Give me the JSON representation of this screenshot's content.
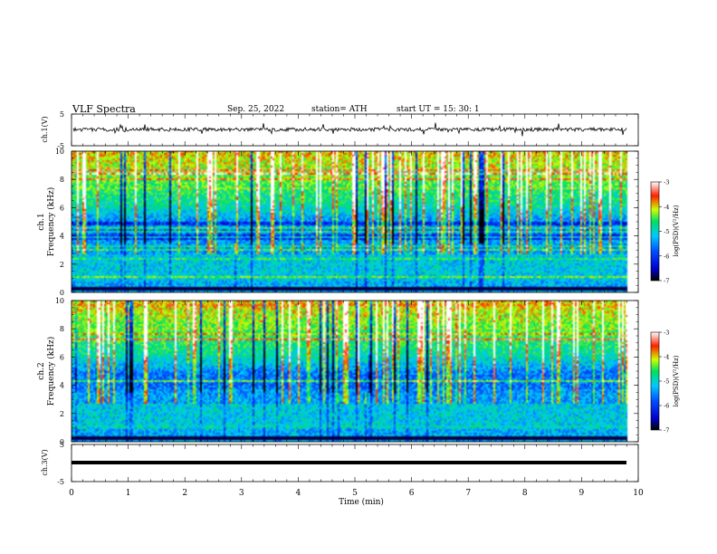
{
  "header": {
    "title": "VLF  Spectra",
    "date": "Sep. 25, 2022",
    "station": "station= ATH",
    "start": "start  UT  =    15: 30: 1"
  },
  "chart_data": [
    {
      "type": "line",
      "panel": "ch1-waveform",
      "ylabel": "ch.1(V)",
      "ylim": [
        -5,
        5
      ],
      "yticks": [
        "5",
        "-5"
      ],
      "xlim": [
        0,
        10
      ],
      "series_color": "#000000"
    },
    {
      "type": "heatmap",
      "panel": "ch1-spectrogram",
      "ylabel": "ch.1\nFrequency (kHz)",
      "ylim": [
        0,
        10
      ],
      "yticks": [
        "0",
        "2",
        "4",
        "6",
        "8",
        "10"
      ],
      "xlim": [
        0,
        10
      ],
      "colorbar": {
        "label": "log(PSD)(V²/Hz)",
        "range": [
          -7,
          -3
        ],
        "ticks": [
          "-3",
          "-4",
          "-5",
          "-6",
          "-7"
        ]
      }
    },
    {
      "type": "heatmap",
      "panel": "ch2-spectrogram",
      "ylabel": "ch.2\nFrequency (kHz)",
      "ylim": [
        0,
        10
      ],
      "yticks": [
        "0",
        "2",
        "4",
        "6",
        "8",
        "10"
      ],
      "xlim": [
        0,
        10
      ],
      "colorbar": {
        "label": "log(PSD)(V²/Hz)",
        "range": [
          -7,
          -3
        ],
        "ticks": [
          "-3",
          "-4",
          "-5",
          "-6",
          "-7"
        ]
      }
    },
    {
      "type": "line",
      "panel": "ch3-waveform",
      "ylabel": "ch.3(V)",
      "ylim": [
        -5,
        5
      ],
      "yticks": [
        "5",
        "-5"
      ],
      "xlim": [
        0,
        10
      ],
      "series_color": "#000000"
    }
  ],
  "xaxis": {
    "label": "Time  (min)",
    "ticks": [
      "0",
      "1",
      "2",
      "3",
      "4",
      "5",
      "6",
      "7",
      "8",
      "9",
      "10"
    ]
  },
  "colors": {
    "colormap": [
      "#000000",
      "#0000cc",
      "#0050ff",
      "#00c8ff",
      "#00e060",
      "#ccff00",
      "#ff2000",
      "#ffffff"
    ]
  }
}
